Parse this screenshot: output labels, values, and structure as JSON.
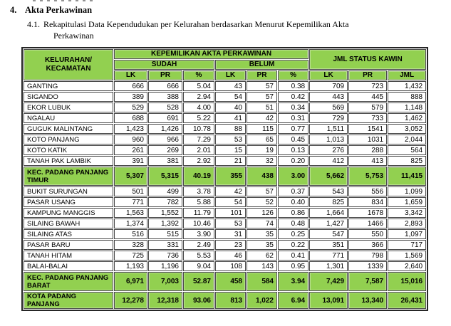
{
  "document": {
    "heading_num": "4.",
    "heading": "Akta Perkawinan",
    "sub_num": "4.1.",
    "sub_line1": "Rekapitulasi Data Kependudukan per Kelurahan berdasarkan Menurut Kepemilikan Akta",
    "sub_line2": "Perkawinan"
  },
  "table": {
    "col1_line1": "KELURAHAN/",
    "col1_line2": "KECAMATAN",
    "group_akta": "KEPEMILIKAN AKTA PERKAWINAN",
    "group_sudah": "SUDAH",
    "group_belum": "BELUM",
    "group_jml": "JML STATUS KAWIN",
    "subcols": [
      "LK",
      "PR",
      "%",
      "LK",
      "PR",
      "%",
      "LK",
      "PR",
      "JML"
    ],
    "rows": [
      {
        "type": "data",
        "name": "GANTING",
        "values": [
          "666",
          "666",
          "5.04",
          "43",
          "57",
          "0.38",
          "709",
          "723",
          "1,432"
        ]
      },
      {
        "type": "data",
        "name": "SIGANDO",
        "values": [
          "389",
          "388",
          "2.94",
          "54",
          "57",
          "0.42",
          "443",
          "445",
          "888"
        ]
      },
      {
        "type": "data",
        "name": "EKOR LUBUK",
        "values": [
          "529",
          "528",
          "4.00",
          "40",
          "51",
          "0.34",
          "569",
          "579",
          "1,148"
        ]
      },
      {
        "type": "data",
        "name": "NGALAU",
        "values": [
          "688",
          "691",
          "5.22",
          "41",
          "42",
          "0.31",
          "729",
          "733",
          "1,462"
        ]
      },
      {
        "type": "data",
        "name": "GUGUK MALINTANG",
        "values": [
          "1,423",
          "1,426",
          "10.78",
          "88",
          "115",
          "0.77",
          "1,511",
          "1541",
          "3,052"
        ]
      },
      {
        "type": "data",
        "name": "KOTO PANJANG",
        "values": [
          "960",
          "966",
          "7.29",
          "53",
          "65",
          "0.45",
          "1,013",
          "1031",
          "2,044"
        ]
      },
      {
        "type": "data",
        "name": "KOTO KATIK",
        "values": [
          "261",
          "269",
          "2.01",
          "15",
          "19",
          "0.13",
          "276",
          "288",
          "564"
        ]
      },
      {
        "type": "data",
        "name": "TANAH PAK LAMBIK",
        "values": [
          "391",
          "381",
          "2.92",
          "21",
          "32",
          "0.20",
          "412",
          "413",
          "825"
        ]
      },
      {
        "type": "summary",
        "name": "KEC. PADANG PANJANG TIMUR",
        "values": [
          "5,307",
          "5,315",
          "40.19",
          "355",
          "438",
          "3.00",
          "5,662",
          "5,753",
          "11,415"
        ]
      },
      {
        "type": "data",
        "name": "BUKIT SURUNGAN",
        "values": [
          "501",
          "499",
          "3.78",
          "42",
          "57",
          "0.37",
          "543",
          "556",
          "1,099"
        ]
      },
      {
        "type": "data",
        "name": "PASAR USANG",
        "values": [
          "771",
          "782",
          "5.88",
          "54",
          "52",
          "0.40",
          "825",
          "834",
          "1,659"
        ]
      },
      {
        "type": "data",
        "name": "KAMPUNG MANGGIS",
        "values": [
          "1,563",
          "1,552",
          "11.79",
          "101",
          "126",
          "0.86",
          "1,664",
          "1678",
          "3,342"
        ]
      },
      {
        "type": "data",
        "name": "SILAING BAWAH",
        "values": [
          "1,374",
          "1,392",
          "10.46",
          "53",
          "74",
          "0.48",
          "1,427",
          "1466",
          "2,893"
        ]
      },
      {
        "type": "data",
        "name": "SILAING ATAS",
        "values": [
          "516",
          "515",
          "3.90",
          "31",
          "35",
          "0.25",
          "547",
          "550",
          "1,097"
        ]
      },
      {
        "type": "data",
        "name": "PASAR BARU",
        "values": [
          "328",
          "331",
          "2.49",
          "23",
          "35",
          "0.22",
          "351",
          "366",
          "717"
        ]
      },
      {
        "type": "data",
        "name": "TANAH HITAM",
        "values": [
          "725",
          "736",
          "5.53",
          "46",
          "62",
          "0.41",
          "771",
          "798",
          "1,569"
        ]
      },
      {
        "type": "data",
        "name": "BALAI-BALAI",
        "values": [
          "1,193",
          "1,196",
          "9.04",
          "108",
          "143",
          "0.95",
          "1,301",
          "1339",
          "2,640"
        ]
      },
      {
        "type": "summary",
        "name": "KEC. PADANG PANJANG BARAT",
        "values": [
          "6,971",
          "7,003",
          "52.87",
          "458",
          "584",
          "3.94",
          "7,429",
          "7,587",
          "15,016"
        ]
      },
      {
        "type": "total",
        "name": "KOTA PADANG PANJANG",
        "values": [
          "12,278",
          "12,318",
          "93.06",
          "813",
          "1,022",
          "6.94",
          "13,091",
          "13,340",
          "26,431"
        ]
      }
    ]
  },
  "colors": {
    "header_green": "#92D050",
    "border_dark": "#4a4a4a",
    "outer_border": "#262626"
  }
}
